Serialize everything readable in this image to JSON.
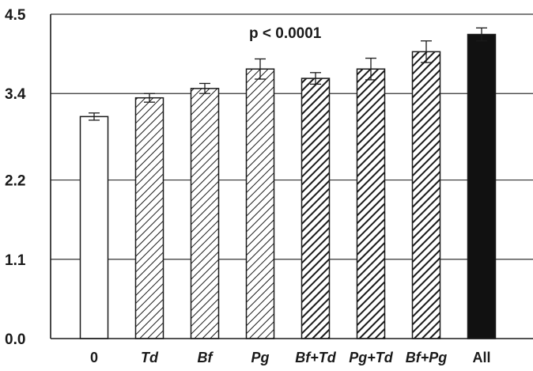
{
  "chart_data": {
    "type": "bar",
    "title": "",
    "xlabel": "",
    "ylabel": "",
    "annotation": "p < 0.0001",
    "ylim": [
      0,
      4.5
    ],
    "yticks": [
      "0.0",
      "1.1",
      "2.2",
      "3.4",
      "4.5"
    ],
    "ytick_values": [
      0.0,
      1.1,
      2.2,
      3.4,
      4.5
    ],
    "grid": "horizontal",
    "categories": [
      "0",
      "Td",
      "Bf",
      "Pg",
      "Bf+Td",
      "Pg+Td",
      "Bf+Pg",
      "All"
    ],
    "italic_categories": [
      false,
      true,
      true,
      true,
      true,
      true,
      true,
      false
    ],
    "values": [
      3.08,
      3.34,
      3.47,
      3.74,
      3.61,
      3.74,
      3.98,
      4.22
    ],
    "errors": [
      0.05,
      0.06,
      0.07,
      0.14,
      0.08,
      0.15,
      0.15,
      0.09
    ],
    "fills": [
      "white",
      "light-hatch",
      "light-hatch",
      "light-hatch",
      "dense-hatch",
      "dense-hatch",
      "dense-hatch",
      "solid"
    ],
    "colors": {
      "bar_stroke": "#1a1a1a",
      "solid": "#111111",
      "grid": "#333333",
      "axis": "#1a1a1a"
    }
  }
}
